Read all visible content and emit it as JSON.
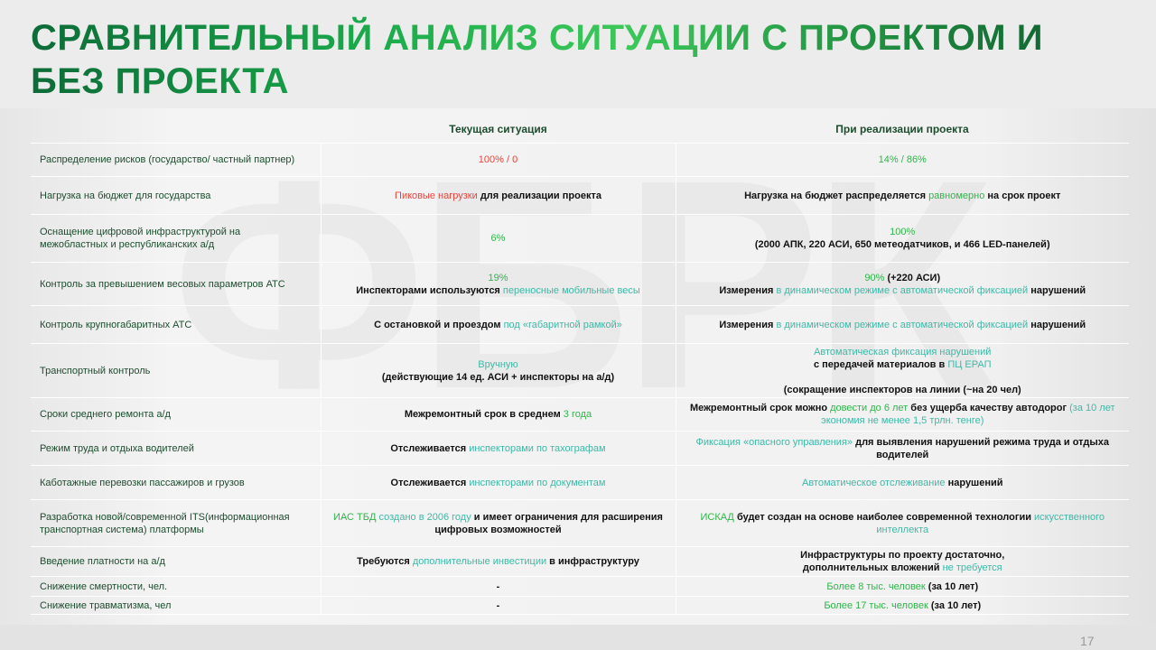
{
  "title": "СРАВНИТЕЛЬНЫЙ АНАЛИЗ СИТУАЦИИ С ПРОЕКТОМ И БЕЗ ПРОЕКТА",
  "page_number": "17",
  "colors": {
    "red": "#e8453c",
    "green": "#2fb54a",
    "teal": "#3fb8a8",
    "label": "#1d4d2e"
  },
  "table": {
    "headers": [
      "",
      "Текущая ситуация",
      "При реализации проекта"
    ],
    "rows": [
      {
        "label": "Распределение рисков (государство/ частный партнер)",
        "current": [
          {
            "c": "r",
            "text": "100% / 0"
          }
        ],
        "project": [
          {
            "c": "g",
            "text": "14% / 86%"
          }
        ]
      },
      {
        "label": "Нагрузка на бюджет для государства",
        "current": [
          {
            "c": "r",
            "text": "Пиковые нагрузки"
          },
          {
            "c": "k",
            "text": " для реализации проекта"
          }
        ],
        "project": [
          {
            "c": "k",
            "text": "Нагрузка на бюджет распределяется "
          },
          {
            "c": "g",
            "text": "равномерно"
          },
          {
            "c": "k",
            "text": " на срок проект"
          }
        ]
      },
      {
        "label": "Оснащение цифровой инфраструктурой на\nмежобластных и республиканских а/д",
        "current": [
          {
            "c": "g",
            "text": "6%"
          }
        ],
        "project": [
          {
            "c": "g",
            "text": "100%"
          },
          {
            "c": "k",
            "text": "\n(2000 АПК, 220 АСИ, 650 метеодатчиков, и 466  LED-панелей)"
          }
        ]
      },
      {
        "label": "Контроль за превышением весовых параметров АТС",
        "current": [
          {
            "c": "g",
            "text": "19%"
          },
          {
            "c": "k",
            "text": "\nИнспекторами используются "
          },
          {
            "c": "t",
            "text": "переносные мобильные весы"
          }
        ],
        "project": [
          {
            "c": "g",
            "text": "90%"
          },
          {
            "c": "k",
            "text": " (+220 АСИ)\nИзмерения "
          },
          {
            "c": "t",
            "text": "в динамическом режиме с автоматической фиксацией"
          },
          {
            "c": "k",
            "text": " нарушений"
          }
        ]
      },
      {
        "label": "Контроль крупногабаритных АТС",
        "current": [
          {
            "c": "k",
            "text": "С остановкой и проездом "
          },
          {
            "c": "t",
            "text": "под «габаритной рамкой»"
          }
        ],
        "project": [
          {
            "c": "k",
            "text": "Измерения "
          },
          {
            "c": "t",
            "text": "в динамическом режиме с автоматической фиксацией"
          },
          {
            "c": "k",
            "text": " нарушений"
          }
        ]
      },
      {
        "label": "Транспортный контроль",
        "current": [
          {
            "c": "t",
            "text": "Вручную"
          },
          {
            "c": "k",
            "text": "\n(действующие 14 ед. АСИ + инспекторы на а/д)"
          }
        ],
        "project": [
          {
            "c": "t",
            "text": "Автоматическая фиксация нарушений"
          },
          {
            "c": "k",
            "text": "\nс передачей материалов в "
          },
          {
            "c": "t",
            "text": "ПЦ ЕРАП"
          },
          {
            "c": "k",
            "text": "\n\n(сокращение инспекторов на линии (~на 20 чел)"
          }
        ]
      },
      {
        "label": "Сроки среднего ремонта а/д",
        "current": [
          {
            "c": "k",
            "text": "Межремонтный срок в среднем "
          },
          {
            "c": "g",
            "text": "3 года"
          }
        ],
        "project": [
          {
            "c": "k",
            "text": "Межремонтный срок можно "
          },
          {
            "c": "g",
            "text": "довести до 6 лет"
          },
          {
            "c": "k",
            "text": " без ущерба качеству автодорог "
          },
          {
            "c": "t",
            "text": "(за 10 лет\nэкономия не менее  1,5 трлн. тенге)"
          }
        ]
      },
      {
        "label": "Режим труда и отдыха водителей",
        "current": [
          {
            "c": "k",
            "text": "Отслеживается "
          },
          {
            "c": "t",
            "text": "инспекторами по тахографам"
          }
        ],
        "project": [
          {
            "c": "t",
            "text": "Фиксация «опасного управления»"
          },
          {
            "c": "k",
            "text": " для выявления нарушений режима труда и отдыха\nводителей"
          }
        ]
      },
      {
        "label": "Каботажные перевозки пассажиров и грузов",
        "current": [
          {
            "c": "k",
            "text": "Отслеживается "
          },
          {
            "c": "t",
            "text": "инспекторами по документам"
          }
        ],
        "project": [
          {
            "c": "t",
            "text": "Автоматическое отслеживание"
          },
          {
            "c": "k",
            "text": " нарушений"
          }
        ]
      },
      {
        "label": "Разработка новой/современной ITS(информационная\nтранспортная система) платформы",
        "current": [
          {
            "c": "g",
            "text": "ИАС ТБД"
          },
          {
            "c": "t",
            "text": " создано в 2006 году"
          },
          {
            "c": "k",
            "text": " и имеет ограничения для расширения\nцифровых возможностей"
          }
        ],
        "project": [
          {
            "c": "g",
            "text": "ИСКАД"
          },
          {
            "c": "k",
            "text": " будет создан на основе наиболее современной технологии "
          },
          {
            "c": "t",
            "text": "искусственного\nинтеллекта"
          }
        ]
      },
      {
        "label": "Введение платности на а/д",
        "current": [
          {
            "c": "k",
            "text": "Требуются "
          },
          {
            "c": "t",
            "text": "дополнительные инвестиции"
          },
          {
            "c": "k",
            "text": " в инфраструктуру"
          }
        ],
        "project": [
          {
            "c": "k",
            "text": "Инфраструктуры по проекту достаточно,\nдополнительных вложений "
          },
          {
            "c": "t",
            "text": "не требуется"
          }
        ]
      },
      {
        "label": "Снижение смертности, чел.",
        "current": [
          {
            "c": "k",
            "text": "-"
          }
        ],
        "project": [
          {
            "c": "g",
            "text": "Более 8 тыс. человек"
          },
          {
            "c": "k",
            "text": " (за 10 лет)"
          }
        ]
      },
      {
        "label": "Снижение травматизма, чел",
        "current": [
          {
            "c": "k",
            "text": "-"
          }
        ],
        "project": [
          {
            "c": "g",
            "text": "Более 17 тыс. человек"
          },
          {
            "c": "k",
            "text": " (за 10 лет)"
          }
        ]
      }
    ]
  }
}
